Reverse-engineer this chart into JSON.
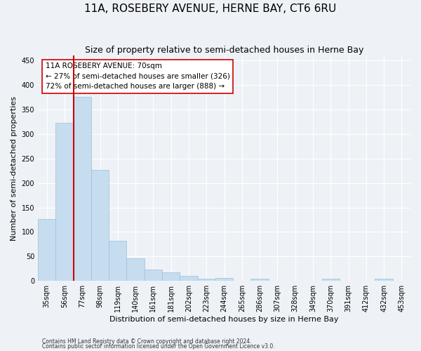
{
  "title": "11A, ROSEBERY AVENUE, HERNE BAY, CT6 6RU",
  "subtitle": "Size of property relative to semi-detached houses in Herne Bay",
  "xlabel": "Distribution of semi-detached houses by size in Herne Bay",
  "ylabel": "Number of semi-detached properties",
  "categories": [
    "35sqm",
    "56sqm",
    "77sqm",
    "98sqm",
    "119sqm",
    "140sqm",
    "161sqm",
    "181sqm",
    "202sqm",
    "223sqm",
    "244sqm",
    "265sqm",
    "286sqm",
    "307sqm",
    "328sqm",
    "349sqm",
    "370sqm",
    "391sqm",
    "412sqm",
    "432sqm",
    "453sqm"
  ],
  "values": [
    127,
    322,
    375,
    226,
    82,
    46,
    23,
    17,
    10,
    4,
    6,
    0,
    4,
    0,
    0,
    0,
    4,
    0,
    0,
    4,
    0
  ],
  "bar_color": "#c5ddef",
  "bar_edge_color": "#9bbfd8",
  "property_line_color": "#cc0000",
  "annotation_title": "11A ROSEBERY AVENUE: 70sqm",
  "annotation_line1": "← 27% of semi-detached houses are smaller (326)",
  "annotation_line2": "72% of semi-detached houses are larger (888) →",
  "annotation_box_color": "#ffffff",
  "annotation_box_edge": "#cc0000",
  "ylim": [
    0,
    460
  ],
  "yticks": [
    0,
    50,
    100,
    150,
    200,
    250,
    300,
    350,
    400,
    450
  ],
  "footnote1": "Contains HM Land Registry data © Crown copyright and database right 2024.",
  "footnote2": "Contains public sector information licensed under the Open Government Licence v3.0.",
  "background_color": "#eef2f7",
  "grid_color": "#ffffff",
  "title_fontsize": 11,
  "subtitle_fontsize": 9,
  "ylabel_fontsize": 8,
  "xlabel_fontsize": 8,
  "tick_fontsize": 7,
  "annot_fontsize": 7.5,
  "footnote_fontsize": 5.5
}
